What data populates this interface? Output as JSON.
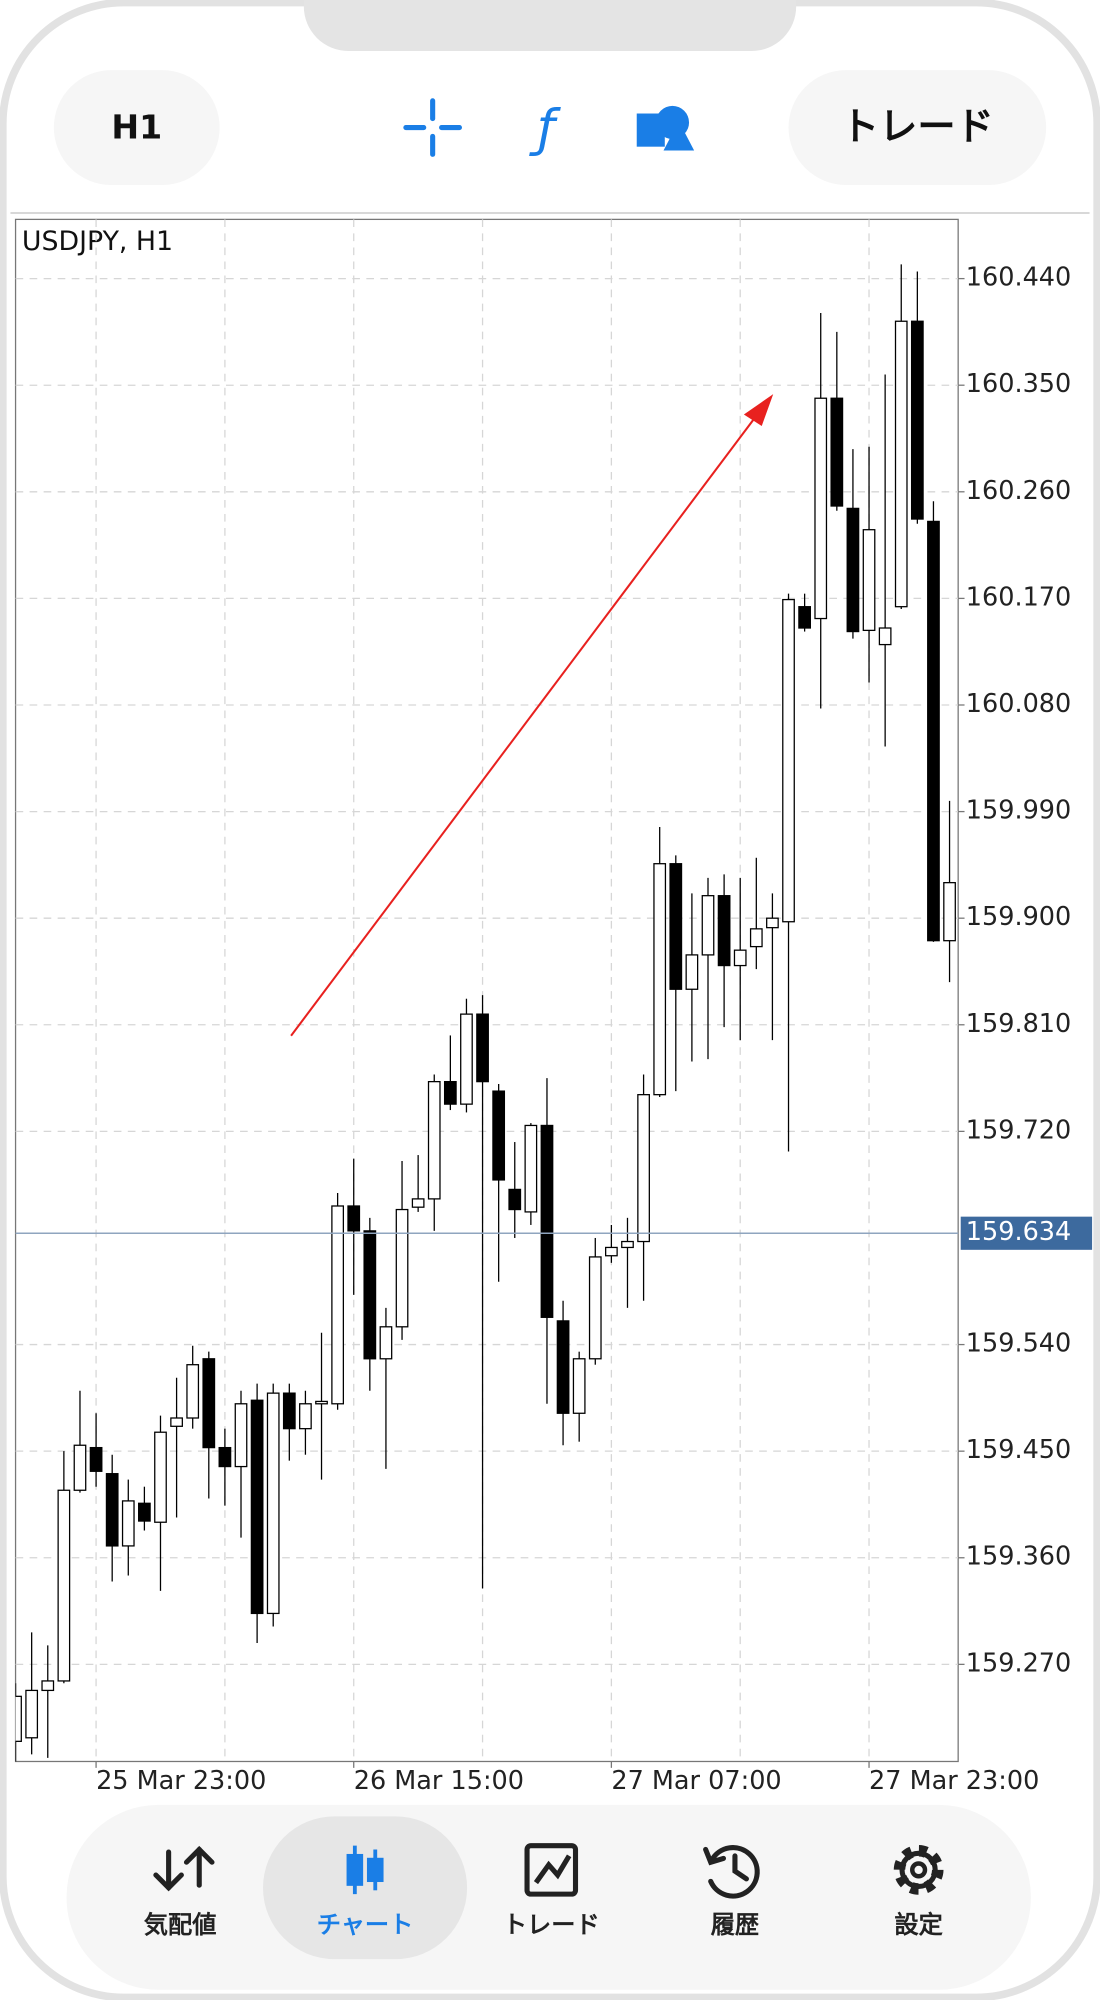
{
  "top_bar": {
    "timeframe": "H1",
    "trade_button": "トレード"
  },
  "chart_data": {
    "type": "candlestick",
    "title": "USDJPY, H1",
    "categories": [
      null,
      null,
      null,
      null,
      null,
      "25 Mar 23:00",
      null,
      null,
      null,
      null,
      null,
      null,
      null,
      null,
      null,
      null,
      null,
      null,
      null,
      null,
      null,
      "26 Mar 15:00",
      null,
      null,
      null,
      null,
      null,
      null,
      null,
      null,
      null,
      null,
      null,
      null,
      null,
      null,
      null,
      "27 Mar 07:00",
      null,
      null,
      null,
      null,
      null,
      null,
      null,
      null,
      null,
      null,
      null,
      null,
      null,
      null,
      null,
      "27 Mar 23:00",
      null,
      null,
      null,
      null,
      null
    ],
    "open": [
      159.205,
      159.208,
      159.248,
      159.256,
      159.417,
      159.453,
      159.431,
      159.37,
      159.406,
      159.39,
      159.471,
      159.478,
      159.528,
      159.453,
      159.437,
      159.493,
      159.313,
      159.499,
      159.469,
      159.49,
      159.49,
      159.657,
      159.636,
      159.528,
      159.555,
      159.656,
      159.663,
      159.762,
      159.743,
      159.819,
      159.754,
      159.671,
      159.652,
      159.725,
      159.56,
      159.482,
      159.528,
      159.615,
      159.622,
      159.627,
      159.751,
      159.946,
      159.84,
      159.869,
      159.919,
      159.86,
      159.876,
      159.892,
      159.897,
      160.163,
      160.153,
      160.339,
      160.246,
      160.143,
      160.131,
      160.163,
      160.404,
      160.235,
      159.881
    ],
    "high": [
      159.254,
      159.297,
      159.286,
      159.45,
      159.501,
      159.482,
      159.447,
      159.426,
      159.42,
      159.48,
      159.512,
      159.539,
      159.534,
      159.469,
      159.501,
      159.507,
      159.507,
      159.507,
      159.501,
      159.55,
      159.668,
      159.697,
      159.647,
      159.571,
      159.695,
      159.7,
      159.768,
      159.801,
      159.832,
      159.835,
      159.76,
      159.711,
      159.727,
      159.765,
      159.577,
      159.534,
      159.63,
      159.641,
      159.647,
      159.768,
      159.977,
      159.953,
      159.921,
      159.934,
      159.937,
      159.934,
      159.951,
      159.921,
      160.174,
      160.174,
      160.411,
      160.395,
      160.296,
      160.298,
      160.359,
      160.452,
      160.446,
      160.252,
      159.999
    ],
    "low": [
      159.188,
      159.194,
      159.191,
      159.254,
      159.415,
      159.42,
      159.34,
      159.345,
      159.383,
      159.332,
      159.394,
      159.469,
      159.41,
      159.404,
      159.377,
      159.288,
      159.302,
      159.442,
      159.447,
      159.426,
      159.485,
      159.582,
      159.501,
      159.435,
      159.544,
      159.652,
      159.636,
      159.738,
      159.736,
      159.334,
      159.593,
      159.63,
      159.641,
      159.49,
      159.455,
      159.458,
      159.523,
      159.609,
      159.571,
      159.577,
      159.749,
      159.754,
      159.779,
      159.781,
      159.808,
      159.797,
      159.857,
      159.797,
      159.703,
      160.142,
      160.077,
      160.244,
      160.136,
      160.099,
      160.045,
      160.161,
      160.233,
      159.88,
      159.846
    ],
    "close": [
      159.243,
      159.248,
      159.256,
      159.417,
      159.455,
      159.433,
      159.37,
      159.408,
      159.391,
      159.466,
      159.478,
      159.523,
      159.453,
      159.437,
      159.49,
      159.313,
      159.499,
      159.469,
      159.49,
      159.492,
      159.657,
      159.636,
      159.528,
      159.555,
      159.654,
      159.663,
      159.762,
      159.743,
      159.819,
      159.762,
      159.679,
      159.654,
      159.725,
      159.563,
      159.482,
      159.528,
      159.614,
      159.622,
      159.627,
      159.751,
      159.946,
      159.84,
      159.869,
      159.919,
      159.86,
      159.873,
      159.891,
      159.9,
      160.169,
      160.145,
      160.339,
      160.248,
      160.142,
      160.228,
      160.145,
      160.404,
      160.237,
      159.881,
      159.93
    ],
    "up_color": "#ffffff",
    "down_color": "#000000",
    "ylim": [
      159.188,
      160.49
    ],
    "yticks": [
      {
        "value": 159.27,
        "label": "159.270"
      },
      {
        "value": 159.36,
        "label": "159.360"
      },
      {
        "value": 159.45,
        "label": "159.450"
      },
      {
        "value": 159.54,
        "label": "159.540"
      },
      {
        "value": 159.72,
        "label": "159.720"
      },
      {
        "value": 159.81,
        "label": "159.810"
      },
      {
        "value": 159.9,
        "label": "159.900"
      },
      {
        "value": 159.99,
        "label": "159.990"
      },
      {
        "value": 160.08,
        "label": "160.080"
      },
      {
        "value": 160.17,
        "label": "160.170"
      },
      {
        "value": 160.26,
        "label": "160.260"
      },
      {
        "value": 160.35,
        "label": "160.350"
      },
      {
        "value": 160.44,
        "label": "160.440"
      }
    ],
    "current_price": 159.634,
    "current_price_color": "#3d6a9e",
    "grid": true
  },
  "nav": {
    "tabs": [
      "気配値",
      "チャート",
      "トレード",
      "履歴",
      "設定"
    ],
    "active": 1
  }
}
